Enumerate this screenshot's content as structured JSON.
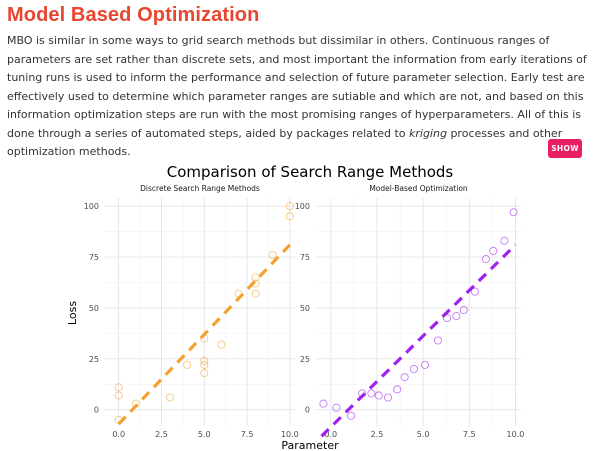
{
  "page": {
    "title": "Model Based Optimization",
    "paragraph_before_em": "MBO is similar in some ways to grid search methods but dissimilar in others. Continuous ranges of parameters are set rather than discrete sets, and most important the information from early iterations of tuning runs is used to inform the performance and selection of future parameter selection. Early test are effectively used to determine which parameter ranges are sutiable and which are not, and based on this information optimization steps are run with the most promising ranges of hyperparameters. All of this is done through a series of automated steps, aided by packages related to ",
    "paragraph_em": "kriging",
    "paragraph_after_em": " processes and other optimization methods.",
    "show_button": "SHOW"
  },
  "colors": {
    "title": "#e8462e",
    "button": "#e91e63",
    "discrete": "#f5a030",
    "mbo": "#a020f0"
  },
  "chart_data": {
    "type": "scatter",
    "title": "Comparison of Search Range Methods",
    "xlabel": "Parameter",
    "ylabel": "Loss",
    "panels": [
      {
        "subtitle": "Discrete Search Range Methods",
        "xlim": [
          -0.8,
          10.3
        ],
        "ylim": [
          -8,
          104
        ],
        "xticks": [
          0.0,
          2.5,
          5.0,
          7.5,
          10.0
        ],
        "xtick_labels": [
          "0.0",
          "2.5",
          "5.0",
          "7.5",
          "10.0"
        ],
        "yticks": [
          0,
          25,
          50,
          75,
          100
        ],
        "ytick_labels": [
          "0",
          "25",
          "50",
          "75",
          "100"
        ],
        "points": [
          {
            "x": 0,
            "y": 11
          },
          {
            "x": 0,
            "y": 7
          },
          {
            "x": 0,
            "y": -5
          },
          {
            "x": 1,
            "y": 3
          },
          {
            "x": 3,
            "y": 6
          },
          {
            "x": 4,
            "y": 22
          },
          {
            "x": 5,
            "y": 35
          },
          {
            "x": 5,
            "y": 24
          },
          {
            "x": 5,
            "y": 22
          },
          {
            "x": 5,
            "y": 18
          },
          {
            "x": 6,
            "y": 32
          },
          {
            "x": 7,
            "y": 57
          },
          {
            "x": 8,
            "y": 65
          },
          {
            "x": 8,
            "y": 62
          },
          {
            "x": 8,
            "y": 57
          },
          {
            "x": 9,
            "y": 76
          },
          {
            "x": 10,
            "y": 100
          },
          {
            "x": 10,
            "y": 95
          }
        ],
        "fit_line": {
          "x": [
            0,
            10
          ],
          "y": [
            -7,
            81
          ]
        },
        "color_key": "discrete"
      },
      {
        "subtitle": "Model-Based Optimization",
        "xlim": [
          -0.8,
          10.3
        ],
        "ylim": [
          -8,
          104
        ],
        "xticks": [
          0.0,
          2.5,
          5.0,
          7.5,
          10.0
        ],
        "xtick_labels": [
          "0.0",
          "2.5",
          "5.0",
          "7.5",
          "10.0"
        ],
        "yticks": [
          0,
          25,
          50,
          75,
          100
        ],
        "ytick_labels": [
          "0",
          "25",
          "50",
          "75",
          "100"
        ],
        "points": [
          {
            "x": -0.4,
            "y": 3
          },
          {
            "x": 0.3,
            "y": 1
          },
          {
            "x": 1.1,
            "y": -3
          },
          {
            "x": 1.7,
            "y": 8
          },
          {
            "x": 2.2,
            "y": 8
          },
          {
            "x": 2.6,
            "y": 7
          },
          {
            "x": 3.1,
            "y": 6
          },
          {
            "x": 3.6,
            "y": 10
          },
          {
            "x": 4.0,
            "y": 16
          },
          {
            "x": 4.5,
            "y": 20
          },
          {
            "x": 5.1,
            "y": 22
          },
          {
            "x": 5.8,
            "y": 34
          },
          {
            "x": 6.3,
            "y": 45
          },
          {
            "x": 6.8,
            "y": 46
          },
          {
            "x": 7.2,
            "y": 49
          },
          {
            "x": 7.8,
            "y": 58
          },
          {
            "x": 8.4,
            "y": 74
          },
          {
            "x": 8.8,
            "y": 78
          },
          {
            "x": 9.4,
            "y": 83
          },
          {
            "x": 9.9,
            "y": 97
          }
        ],
        "fit_line": {
          "x": [
            -0.5,
            10
          ],
          "y": [
            -13,
            81
          ]
        },
        "color_key": "mbo"
      }
    ]
  }
}
